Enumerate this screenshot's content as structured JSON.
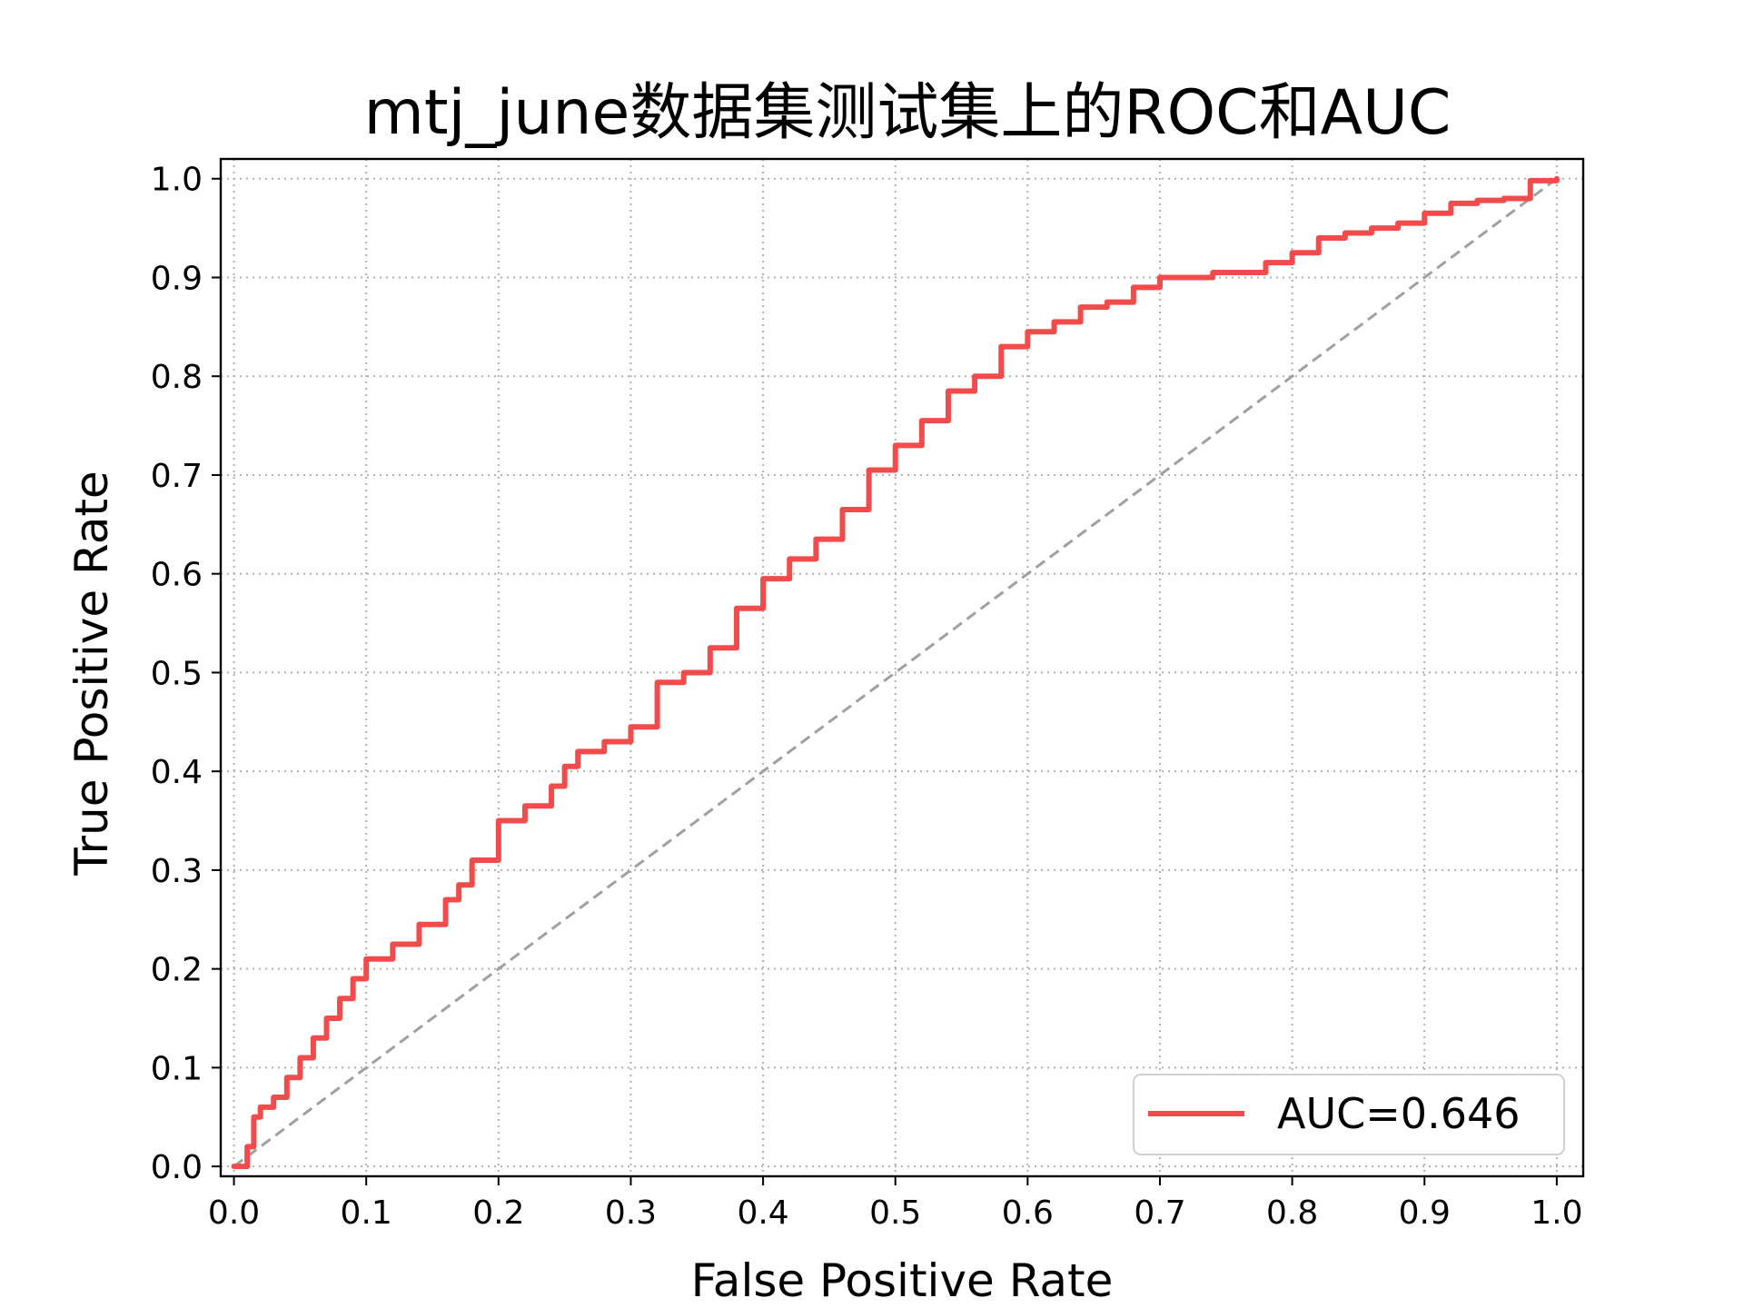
{
  "chart_data": {
    "type": "line",
    "title": "mtj_june数据集测试集上的ROC和AUC",
    "xlabel": "False Positive Rate",
    "ylabel": "True Positive Rate",
    "xlim": [
      0,
      1
    ],
    "ylim": [
      0,
      1
    ],
    "grid": true,
    "legend_position": "lower-right",
    "x_ticks": [
      "0.0",
      "0.1",
      "0.2",
      "0.3",
      "0.4",
      "0.5",
      "0.6",
      "0.7",
      "0.8",
      "0.9",
      "1.0"
    ],
    "y_ticks": [
      "0.0",
      "0.1",
      "0.2",
      "0.3",
      "0.4",
      "0.5",
      "0.6",
      "0.7",
      "0.8",
      "0.9",
      "1.0"
    ],
    "series": [
      {
        "name": "AUC=0.646",
        "color": "#f24b4b",
        "x": [
          0.0,
          0.01,
          0.015,
          0.02,
          0.03,
          0.04,
          0.05,
          0.06,
          0.07,
          0.08,
          0.09,
          0.1,
          0.12,
          0.14,
          0.16,
          0.17,
          0.18,
          0.2,
          0.22,
          0.24,
          0.25,
          0.26,
          0.28,
          0.3,
          0.32,
          0.34,
          0.36,
          0.38,
          0.4,
          0.42,
          0.44,
          0.46,
          0.48,
          0.5,
          0.52,
          0.54,
          0.56,
          0.58,
          0.6,
          0.62,
          0.64,
          0.66,
          0.68,
          0.7,
          0.74,
          0.78,
          0.8,
          0.82,
          0.84,
          0.86,
          0.88,
          0.9,
          0.92,
          0.94,
          0.96,
          0.98,
          1.0
        ],
        "y": [
          0.0,
          0.02,
          0.05,
          0.06,
          0.07,
          0.09,
          0.11,
          0.13,
          0.15,
          0.17,
          0.19,
          0.21,
          0.225,
          0.245,
          0.27,
          0.285,
          0.31,
          0.35,
          0.365,
          0.385,
          0.405,
          0.42,
          0.43,
          0.445,
          0.49,
          0.5,
          0.525,
          0.565,
          0.595,
          0.615,
          0.635,
          0.665,
          0.705,
          0.73,
          0.755,
          0.785,
          0.8,
          0.83,
          0.845,
          0.855,
          0.87,
          0.875,
          0.89,
          0.9,
          0.905,
          0.915,
          0.925,
          0.94,
          0.945,
          0.95,
          0.955,
          0.965,
          0.975,
          0.978,
          0.98,
          0.998,
          1.0
        ]
      },
      {
        "name": "",
        "color": "#a0a0a0",
        "dashed": true,
        "x": [
          0,
          1
        ],
        "y": [
          0,
          1
        ]
      }
    ],
    "legend_entries": [
      "AUC=0.646"
    ]
  }
}
